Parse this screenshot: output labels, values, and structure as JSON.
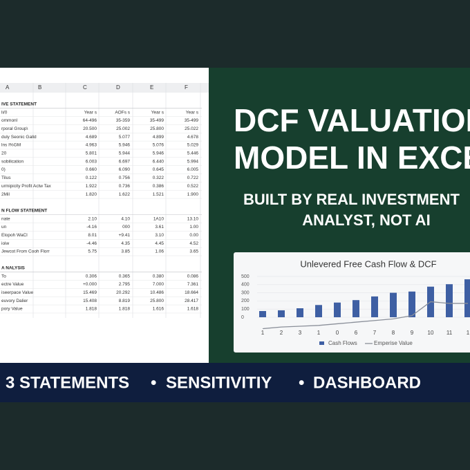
{
  "sheet": {
    "columns": [
      "A",
      "B",
      "C",
      "D",
      "E",
      "F"
    ],
    "sections": [
      {
        "title": "IVE STATEMENT",
        "rows": [
          [
            "li/0",
            "Year s",
            "AOFs s",
            "Year s",
            "Year s"
          ],
          [
            "ommonl",
            "64-496",
            "35-359",
            "35-499",
            "35-499"
          ],
          [
            "rporal Group\\",
            "20.500",
            "25.002",
            "25.800",
            "25.022"
          ],
          [
            "duly Seonic Galld",
            "4.689",
            "5.077",
            "4.899",
            "4.678"
          ],
          [
            "lns I%GM",
            "4.963",
            "5.946",
            "5.076",
            "5.029"
          ],
          [
            "20",
            "5.801",
            "5.944",
            "5.946",
            "5.446"
          ],
          [
            "sobilication",
            "6.003",
            "6.697",
            "6.440",
            "5.994"
          ],
          [
            "0)",
            "0.660",
            "6.090",
            "0.645",
            "6.005"
          ],
          [
            "Tilus",
            "0.122",
            "0.756",
            "0.322",
            "0.722"
          ],
          [
            "urmipicity Profit Actw Tax",
            "1.922",
            "0.736",
            "0.386",
            "0.522"
          ],
          [
            "2Mil",
            "1.820",
            "1.622",
            "1.521",
            "1.900"
          ]
        ]
      },
      {
        "title": "N FLOW STATEMENT",
        "rows": [
          [
            "nate",
            "2.10",
            "4.10",
            "1A10",
            "13.10"
          ],
          [
            "un",
            "-4.16",
            "000",
            "3.61",
            "1.00"
          ],
          [
            "Elopoh WaCl",
            "8.01",
            "+9.41",
            "3.10",
            "0.00"
          ],
          [
            "ioiw",
            "-4.46",
            "4.35",
            "4.45",
            "4.52"
          ],
          [
            "Jewcot From Cooh Florr",
            "5.75",
            "3.85",
            "1.06",
            "3.65"
          ]
        ]
      },
      {
        "title": "A NALYSIS",
        "rows": [
          [
            "To",
            "0.306",
            "0.365",
            "0.380",
            "0.086"
          ],
          [
            "ectre Value",
            "+0.000",
            "2.795",
            "7.000",
            "7.361"
          ],
          [
            "iseerpace Value",
            "15.469",
            "20.292",
            "10.486",
            "18.664"
          ],
          [
            "euvory Dalier",
            "15.408",
            "8.819",
            "25.800",
            "28.417"
          ],
          [
            "pory Value",
            "1.818",
            "1.818",
            "1.616",
            "1.618"
          ]
        ]
      }
    ]
  },
  "headline": [
    "DCF VALUATION",
    "MODEL IN EXCEL"
  ],
  "subheadline": [
    "BUILT BY REAL INVESTMENT",
    "ANALYST, NOT AI"
  ],
  "banner": [
    "3 STATEMENTS",
    "•",
    "SENSITIVITIY",
    "•",
    "DASHBOARD"
  ],
  "chart_data": {
    "type": "bar",
    "title": "Unlevered Free Cash Flow & DCF",
    "categories": [
      "1",
      "2",
      "3",
      "1",
      "0",
      "6",
      "7",
      "8",
      "9",
      "10",
      "11",
      "1"
    ],
    "series": [
      {
        "name": "Cash Flows",
        "color": "#3e5fa3",
        "type": "bar",
        "values": [
          76,
          85,
          110,
          150,
          180,
          210,
          255,
          300,
          315,
          375,
          405,
          465
        ]
      },
      {
        "name": "Emperise Value",
        "color": "#8a8f99",
        "type": "line",
        "values": [
          -140,
          -120,
          -110,
          -100,
          -80,
          -60,
          -40,
          -20,
          20,
          190,
          170,
          170
        ]
      }
    ],
    "ylim": [
      -150,
      520
    ],
    "yticks": [
      0,
      100,
      200,
      300,
      400,
      500
    ],
    "legend": "bottom"
  }
}
